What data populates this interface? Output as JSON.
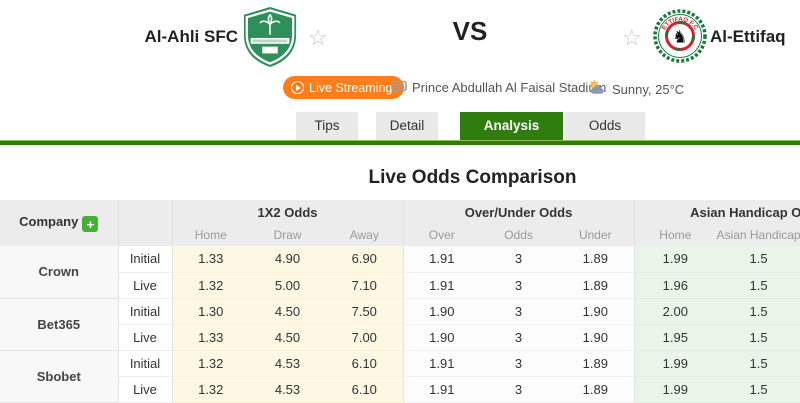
{
  "theme": {
    "accent_green": "#2e7d0e",
    "button_orange": "#ff7d1a",
    "x12_cell_bg": "#fcf8e3",
    "handicap_cell_bg": "#e8f5e8",
    "home_logo_green": "#2e8f5b",
    "away_logo_green": "#177a3a",
    "away_logo_red": "#d5232e"
  },
  "header": {
    "home_team": "Al-Ahli SFC",
    "away_team": "Al-Ettifaq",
    "vs_label": "VS",
    "live_streaming_label": "Live Streaming",
    "stadium": "Prince Abdullah Al Faisal Stadium",
    "weather": "Sunny, 25°C",
    "away_logo_text": "ETTIFAQ F.C"
  },
  "tabs": [
    {
      "label": "Tips",
      "active": false
    },
    {
      "label": "Detail",
      "active": false
    },
    {
      "label": "Analysis",
      "active": true
    },
    {
      "label": "Odds",
      "active": false
    }
  ],
  "analysis": {
    "title": "Live Odds Comparison",
    "table": {
      "company_label": "Company",
      "add_company_label": "+",
      "groups": [
        "1X2 Odds",
        "Over/Under Odds",
        "Asian Handicap Odds"
      ],
      "subheaders": [
        "Home",
        "Draw",
        "Away",
        "Over",
        "Odds",
        "Under",
        "Home",
        "Asian Handicap"
      ],
      "companies": [
        {
          "name": "Crown",
          "rows": [
            {
              "type": "Initial",
              "values": [
                "1.33",
                "4.90",
                "6.90",
                "1.91",
                "3",
                "1.89",
                "1.99",
                "1.5"
              ]
            },
            {
              "type": "Live",
              "values": [
                "1.32",
                "5.00",
                "7.10",
                "1.91",
                "3",
                "1.89",
                "1.96",
                "1.5"
              ]
            }
          ]
        },
        {
          "name": "Bet365",
          "rows": [
            {
              "type": "Initial",
              "values": [
                "1.30",
                "4.50",
                "7.50",
                "1.90",
                "3",
                "1.90",
                "2.00",
                "1.5"
              ]
            },
            {
              "type": "Live",
              "values": [
                "1.33",
                "4.50",
                "7.00",
                "1.90",
                "3",
                "1.90",
                "1.95",
                "1.5"
              ]
            }
          ]
        },
        {
          "name": "Sbobet",
          "rows": [
            {
              "type": "Initial",
              "values": [
                "1.32",
                "4.53",
                "6.10",
                "1.91",
                "3",
                "1.89",
                "1.99",
                "1.5"
              ]
            },
            {
              "type": "Live",
              "values": [
                "1.32",
                "4.53",
                "6.10",
                "1.91",
                "3",
                "1.89",
                "1.99",
                "1.5"
              ]
            }
          ]
        }
      ]
    }
  }
}
